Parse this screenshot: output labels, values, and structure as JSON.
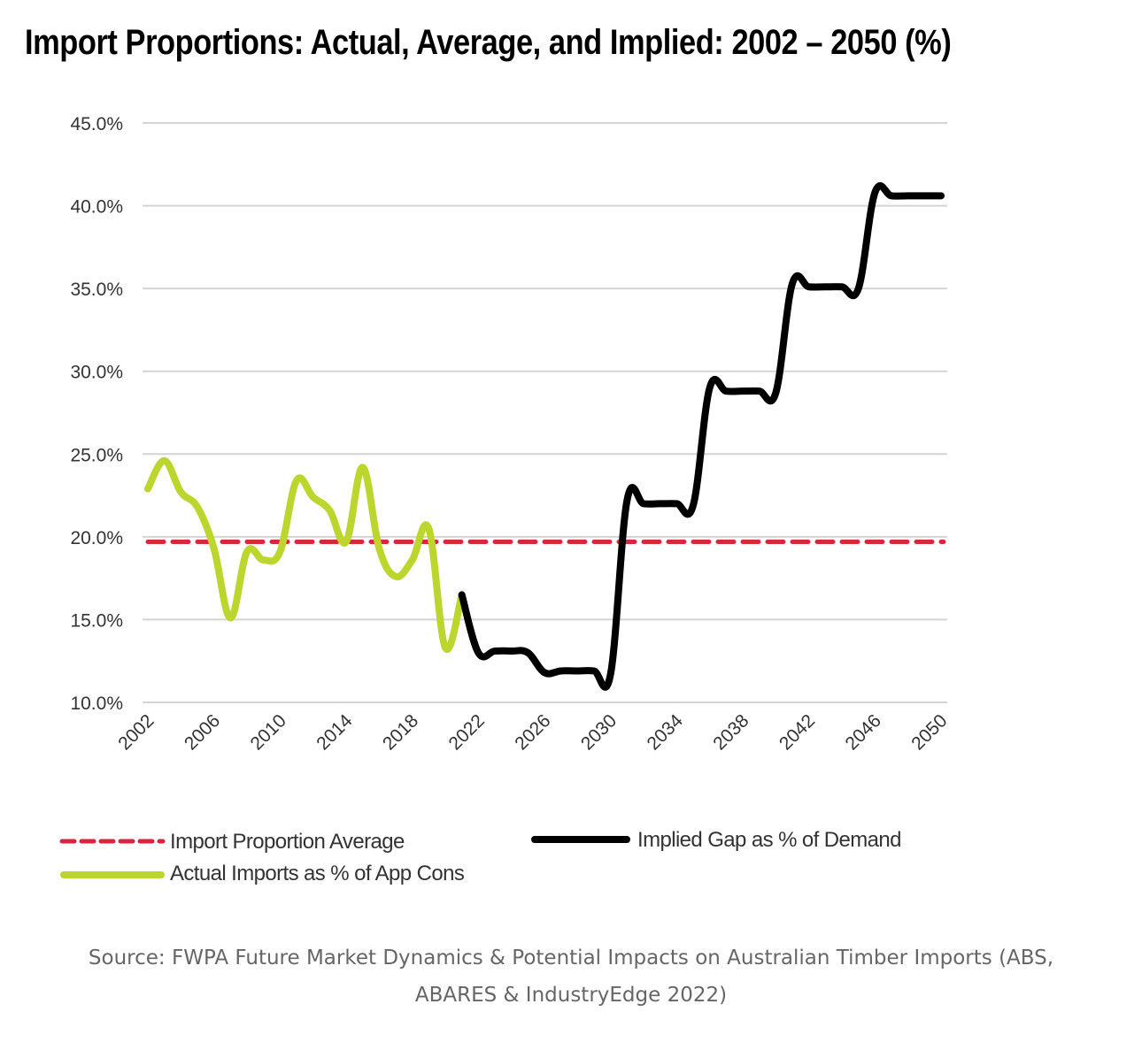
{
  "chart_data": {
    "type": "line",
    "title": "Import Proportions: Actual, Average, and Implied: 2002 – 2050 (%)",
    "xlabel": "",
    "ylabel": "",
    "ylim": [
      10,
      45
    ],
    "xlim": [
      2002,
      2050
    ],
    "grid": true,
    "legend_position": "bottom",
    "yticks": [
      10,
      15,
      20,
      25,
      30,
      35,
      40,
      45
    ],
    "ytick_labels": [
      "10.0%",
      "15.0%",
      "20.0%",
      "25.0%",
      "30.0%",
      "35.0%",
      "40.0%",
      "45.0%"
    ],
    "xticks": [
      2002,
      2006,
      2010,
      2014,
      2018,
      2022,
      2026,
      2030,
      2034,
      2038,
      2042,
      2046,
      2050
    ],
    "xtick_labels": [
      "2002",
      "2006",
      "2010",
      "2014",
      "2018",
      "2022",
      "2026",
      "2030",
      "2034",
      "2038",
      "2042",
      "2046",
      "2050"
    ],
    "series": [
      {
        "name": "Import Proportion Average",
        "color": "#d9263f",
        "style": "dashed",
        "x": [
          2002,
          2050
        ],
        "values": [
          19.7,
          19.7
        ]
      },
      {
        "name": "Actual Imports as % of App Cons",
        "color": "#bcd62e",
        "style": "solid",
        "x": [
          2002,
          2003,
          2004,
          2005,
          2006,
          2007,
          2008,
          2009,
          2010,
          2011,
          2012,
          2013,
          2014,
          2015,
          2016,
          2017,
          2018,
          2019,
          2020,
          2021
        ],
        "values": [
          22.9,
          24.6,
          22.7,
          21.8,
          19.3,
          15.1,
          19.1,
          18.6,
          19.1,
          23.4,
          22.4,
          21.6,
          19.7,
          24.2,
          19.3,
          17.6,
          18.6,
          20.5,
          13.3,
          16.5
        ]
      },
      {
        "name": "Implied Gap as % of Demand",
        "color": "#000000",
        "style": "solid",
        "x": [
          2021,
          2022,
          2023,
          2024,
          2025,
          2026,
          2027,
          2028,
          2029,
          2030,
          2031,
          2032,
          2033,
          2034,
          2035,
          2036,
          2037,
          2038,
          2039,
          2040,
          2041,
          2042,
          2043,
          2044,
          2045,
          2046,
          2047,
          2048,
          2049,
          2050
        ],
        "values": [
          16.5,
          13.0,
          13.1,
          13.1,
          13.0,
          11.8,
          11.9,
          11.9,
          11.9,
          11.7,
          22.2,
          22.0,
          22.0,
          22.0,
          21.9,
          29.0,
          28.8,
          28.8,
          28.8,
          28.7,
          35.3,
          35.1,
          35.1,
          35.1,
          35.0,
          40.8,
          40.6,
          40.6,
          40.6,
          40.6
        ]
      }
    ],
    "legend": [
      {
        "label": "Import Proportion Average",
        "series": 0
      },
      {
        "label": "Implied Gap as % of Demand",
        "series": 2
      },
      {
        "label": "Actual Imports as % of App Cons",
        "series": 1
      }
    ]
  },
  "source": {
    "line1": "Source: FWPA Future Market Dynamics & Potential Impacts on Australian Timber Imports (ABS,",
    "line2": "ABARES & IndustryEdge 2022)"
  },
  "colors": {
    "grid": "#d4d4d4",
    "axis_text": "#333333",
    "source_text": "#666666"
  }
}
